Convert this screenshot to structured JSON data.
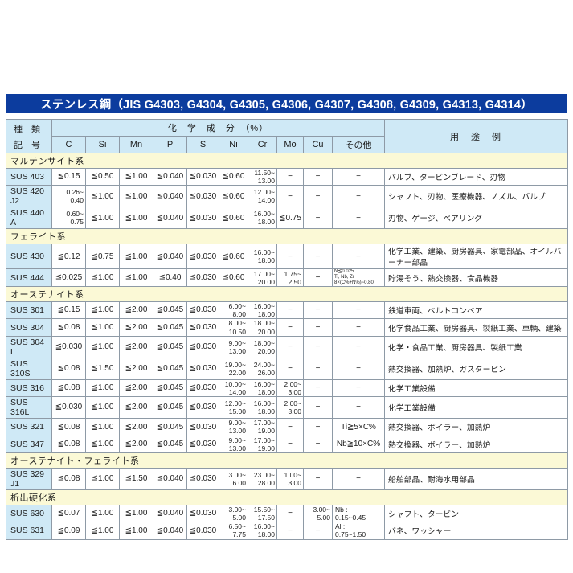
{
  "title": "ステンレス鋼（JIS G4303, G4304, G4305, G4306, G4307, G4308, G4309, G4313, G4314）",
  "colors": {
    "title_bg": "#0c3c9e",
    "title_text": "#ffffff",
    "header_bg": "#cfe9f6",
    "section_bg": "#fbf9d6",
    "code_bg": "#cfe9f6",
    "border": "#8e9aa6"
  },
  "table": {
    "header": {
      "type_top": "種　類",
      "type_bottom": "記　号",
      "chem_label": "化　学　成　分　（%）",
      "use_label": "用　途　例",
      "elements": [
        "C",
        "Si",
        "Mn",
        "P",
        "S",
        "Ni",
        "Cr",
        "Mo",
        "Cu",
        "その他"
      ]
    },
    "sections": [
      {
        "name": "マルテンサイト系",
        "rows": [
          {
            "code": "SUS 403",
            "values": [
              "≦0.15",
              "≦0.50",
              "≦1.00",
              "≦0.040",
              "≦0.030",
              "≦0.60",
              "11.50~\n13.00",
              "−",
              "−",
              "−"
            ],
            "use": "バルブ、タービンブレード、刃物"
          },
          {
            "code": "SUS 420 J2",
            "values": [
              "0.26~\n0.40",
              "≦1.00",
              "≦1.00",
              "≦0.040",
              "≦0.030",
              "≦0.60",
              "12.00~\n14.00",
              "−",
              "−",
              "−"
            ],
            "use": "シャフト、刃物、医療機器、ノズル、バルブ"
          },
          {
            "code": "SUS 440 A",
            "values": [
              "0.60~\n0.75",
              "≦1.00",
              "≦1.00",
              "≦0.040",
              "≦0.030",
              "≦0.60",
              "16.00~\n18.00",
              "≦0.75",
              "−",
              "−"
            ],
            "use": "刃物、ゲージ、ベアリング"
          }
        ]
      },
      {
        "name": "フェライト系",
        "rows": [
          {
            "code": "SUS 430",
            "values": [
              "≦0.12",
              "≦0.75",
              "≦1.00",
              "≦0.040",
              "≦0.030",
              "≦0.60",
              "16.00~\n18.00",
              "−",
              "−",
              "−"
            ],
            "use": "化学工業、建築、厨房器具、家電部品、オイルバーナー部品"
          },
          {
            "code": "SUS 444",
            "values": [
              "≦0.025",
              "≦1.00",
              "≦1.00",
              "≦0.40",
              "≦0.030",
              "≦0.60",
              "17.00~\n20.00",
              "1.75~\n2.50",
              "−",
              "N≦0.025\nTi, Nb, Zr\n8×(C%+N%)~0.80"
            ],
            "use": "貯湯そう、熱交換器、食品機器"
          }
        ]
      },
      {
        "name": "オーステナイト系",
        "rows": [
          {
            "code": "SUS 301",
            "values": [
              "≦0.15",
              "≦1.00",
              "≦2.00",
              "≦0.045",
              "≦0.030",
              "6.00~\n8.00",
              "16.00~\n18.00",
              "−",
              "−",
              "−"
            ],
            "use": "鉄道車両、ベルトコンベア"
          },
          {
            "code": "SUS 304",
            "values": [
              "≦0.08",
              "≦1.00",
              "≦2.00",
              "≦0.045",
              "≦0.030",
              "8.00~\n10.50",
              "18.00~\n20.00",
              "−",
              "−",
              "−"
            ],
            "use": "化学食品工業、厨房器具、製紙工業、車輌、建築"
          },
          {
            "code": "SUS 304 L",
            "values": [
              "≦0.030",
              "≦1.00",
              "≦2.00",
              "≦0.045",
              "≦0.030",
              "9.00~\n13.00",
              "18.00~\n20.00",
              "−",
              "−",
              "−"
            ],
            "use": "化学・食品工業、厨房器具、製紙工業"
          },
          {
            "code": "SUS 310S",
            "values": [
              "≦0.08",
              "≦1.50",
              "≦2.00",
              "≦0.045",
              "≦0.030",
              "19.00~\n22.00",
              "24.00~\n26.00",
              "−",
              "−",
              "−"
            ],
            "use": "熱交換器、加熱炉、ガスタービン"
          },
          {
            "code": "SUS 316",
            "values": [
              "≦0.08",
              "≦1.00",
              "≦2.00",
              "≦0.045",
              "≦0.030",
              "10.00~\n14.00",
              "16.00~\n18.00",
              "2.00~\n3.00",
              "−",
              "−"
            ],
            "use": "化学工業設備"
          },
          {
            "code": "SUS 316L",
            "values": [
              "≦0.030",
              "≦1.00",
              "≦2.00",
              "≦0.045",
              "≦0.030",
              "12.00~\n15.00",
              "16.00~\n18.00",
              "2.00~\n3.00",
              "−",
              "−"
            ],
            "use": "化学工業設備"
          },
          {
            "code": "SUS 321",
            "values": [
              "≦0.08",
              "≦1.00",
              "≦2.00",
              "≦0.045",
              "≦0.030",
              "9.00~\n13.00",
              "17.00~\n19.00",
              "−",
              "−",
              "Ti≧5×C%"
            ],
            "use": "熱交換器、ボイラー、加熱炉"
          },
          {
            "code": "SUS 347",
            "values": [
              "≦0.08",
              "≦1.00",
              "≦2.00",
              "≦0.045",
              "≦0.030",
              "9.00~\n13.00",
              "17.00~\n19.00",
              "−",
              "−",
              "Nb≧10×C%"
            ],
            "use": "熱交換器、ボイラー、加熱炉"
          }
        ]
      },
      {
        "name": "オーステナイト・フェライト系",
        "rows": [
          {
            "code": "SUS 329 J1",
            "values": [
              "≦0.08",
              "≦1.00",
              "≦1.50",
              "≦0.040",
              "≦0.030",
              "3.00~\n6.00",
              "23.00~\n28.00",
              "1.00~\n3.00",
              "−",
              "−"
            ],
            "use": "船舶部品、耐海水用部品"
          }
        ]
      },
      {
        "name": "析出硬化系",
        "rows": [
          {
            "code": "SUS 630",
            "values": [
              "≦0.07",
              "≦1.00",
              "≦1.00",
              "≦0.040",
              "≦0.030",
              "3.00~\n5.00",
              "15.50~\n17.50",
              "−",
              "3.00~\n5.00",
              "Nb :\n0.15~0.45"
            ],
            "use": "シャフト、タービン"
          },
          {
            "code": "SUS 631",
            "values": [
              "≦0.09",
              "≦1.00",
              "≦1.00",
              "≦0.040",
              "≦0.030",
              "6.50~\n7.75",
              "16.00~\n18.00",
              "−",
              "−",
              "Al :\n0.75~1.50"
            ],
            "use": "バネ、ワッシャー"
          }
        ]
      }
    ]
  }
}
